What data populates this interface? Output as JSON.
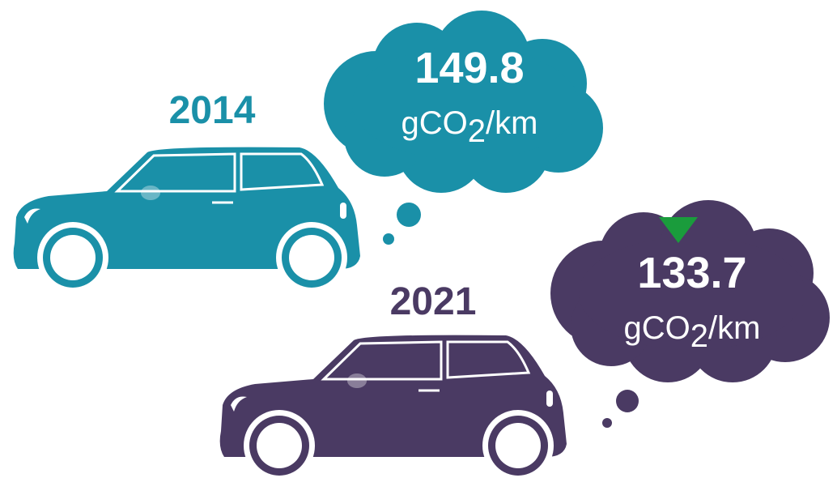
{
  "cars": [
    {
      "year": "2014",
      "emission": "149.8",
      "unit": {
        "base": "gCO",
        "sub": "2",
        "rest": "/km"
      }
    },
    {
      "year": "2021",
      "emission": "133.7",
      "unit": {
        "base": "gCO",
        "sub": "2",
        "rest": "/km"
      }
    }
  ]
}
